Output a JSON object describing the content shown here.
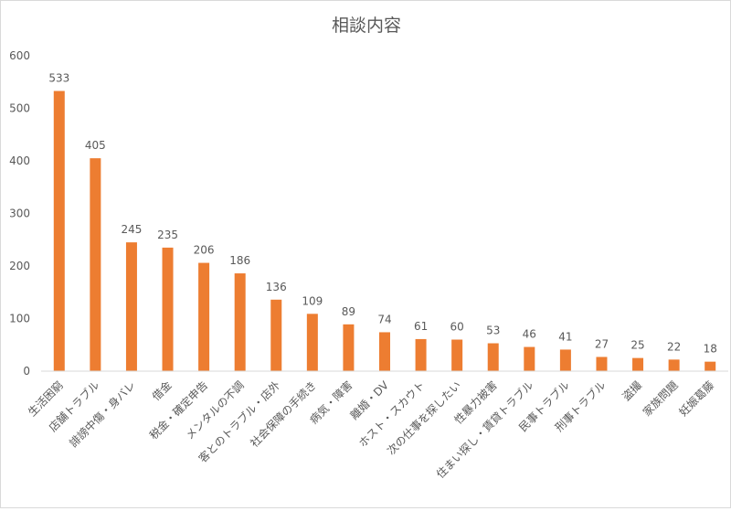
{
  "chart_data": {
    "type": "bar",
    "title": "相談内容",
    "categories": [
      "生活困窮",
      "店舗トラブル",
      "誹謗中傷・身バレ",
      "借金",
      "税金・確定申告",
      "メンタルの不調",
      "客とのトラブル・店外",
      "社会保障の手続き",
      "病気・障害",
      "離婚・DV",
      "ホスト・スカウト",
      "次の仕事を探したい",
      "性暴力被害",
      "住まい探し・賃貸トラブル",
      "民事トラブル",
      "刑事トラブル",
      "盗撮",
      "家族問題",
      "妊娠葛藤"
    ],
    "values": [
      533,
      405,
      245,
      235,
      206,
      186,
      136,
      109,
      89,
      74,
      61,
      60,
      53,
      46,
      41,
      27,
      25,
      22,
      18
    ],
    "ylim": [
      0,
      600
    ],
    "yticks": [
      0,
      100,
      200,
      300,
      400,
      500,
      600
    ],
    "grid": false,
    "legend": "none",
    "colors": {
      "bar": "#ED7D31",
      "axis": "#d9d9d9",
      "text": "#595959"
    }
  }
}
